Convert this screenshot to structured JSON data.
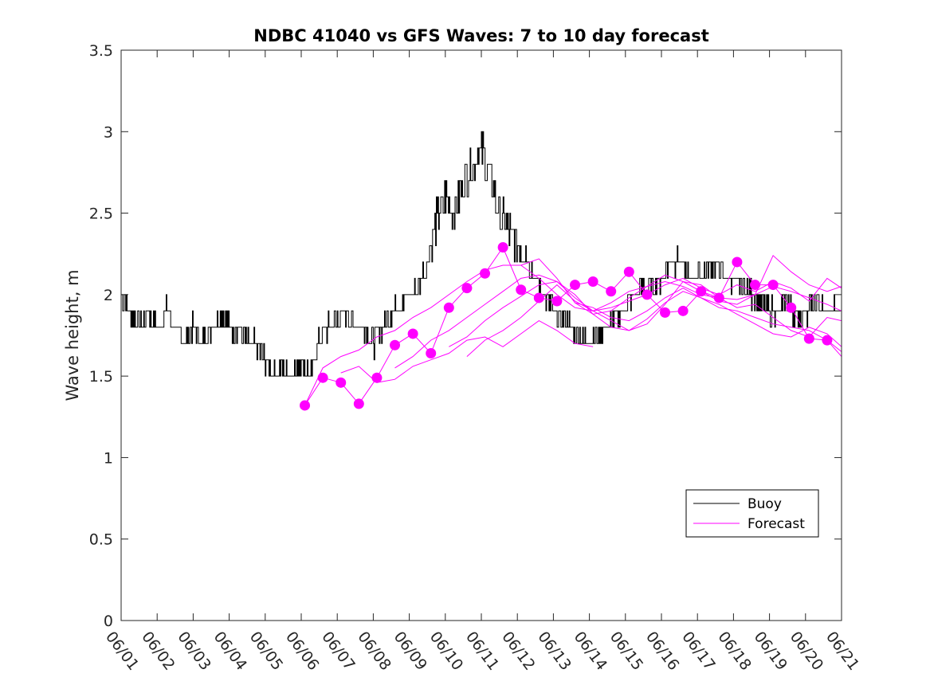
{
  "chart_data": {
    "type": "line",
    "title": "NDBC 41040 vs GFS Waves: 7 to 10 day forecast",
    "xlabel": "",
    "ylabel": "Wave height, m",
    "x_tick_labels": [
      "06/01",
      "06/02",
      "06/03",
      "06/04",
      "06/05",
      "06/06",
      "06/07",
      "06/08",
      "06/09",
      "06/10",
      "06/11",
      "06/12",
      "06/13",
      "06/14",
      "06/15",
      "06/16",
      "06/17",
      "06/18",
      "06/19",
      "06/20",
      "06/21"
    ],
    "y_ticks": [
      0,
      0.5,
      1,
      1.5,
      2,
      2.5,
      3,
      3.5
    ],
    "y_tick_labels": [
      "0",
      "0.5",
      "1",
      "1.5",
      "2",
      "2.5",
      "3",
      "3.5"
    ],
    "xlim_days": [
      0,
      20
    ],
    "ylim": [
      0,
      3.5
    ],
    "legend": {
      "position": "lower-right",
      "entries": [
        "Buoy",
        "Forecast"
      ]
    },
    "colors": {
      "buoy": "#000000",
      "forecast": "#ff00ff"
    },
    "series": [
      {
        "name": "Buoy",
        "x": [
          0,
          0.25,
          0.5,
          0.75,
          1,
          1.25,
          1.5,
          1.75,
          2,
          2.25,
          2.5,
          2.75,
          3,
          3.25,
          3.5,
          3.75,
          4,
          4.25,
          4.5,
          4.75,
          5,
          5.25,
          5.5,
          5.75,
          6,
          6.25,
          6.5,
          6.75,
          7,
          7.25,
          7.5,
          7.75,
          8,
          8.25,
          8.5,
          8.75,
          9,
          9.25,
          9.5,
          9.75,
          10,
          10.25,
          10.5,
          10.75,
          11,
          11.25,
          11.5,
          11.75,
          12,
          12.25,
          12.5,
          12.75,
          13,
          13.25,
          13.5,
          13.75,
          14,
          14.25,
          14.5,
          14.75,
          15,
          15.25,
          15.5,
          15.75,
          16,
          16.25,
          16.5,
          16.75,
          17,
          17.25,
          17.5,
          17.75,
          18,
          18.25,
          18.5,
          18.75,
          19,
          19.25,
          19.5,
          19.75,
          20
        ],
        "y": [
          2.0,
          1.9,
          1.8,
          1.9,
          1.8,
          1.9,
          1.8,
          1.7,
          1.8,
          1.7,
          1.8,
          1.9,
          1.8,
          1.8,
          1.7,
          1.7,
          1.6,
          1.5,
          1.55,
          1.5,
          1.6,
          1.5,
          1.75,
          1.8,
          1.85,
          1.9,
          1.8,
          1.8,
          1.7,
          1.8,
          1.9,
          1.95,
          2.0,
          2.05,
          2.2,
          2.45,
          2.6,
          2.5,
          2.7,
          2.8,
          2.9,
          2.7,
          2.5,
          2.4,
          2.3,
          2.25,
          2.1,
          2.0,
          1.9,
          1.85,
          1.8,
          1.75,
          1.7,
          1.75,
          1.8,
          1.85,
          1.9,
          2.0,
          2.05,
          2.05,
          2.1,
          2.2,
          2.2,
          2.1,
          2.1,
          2.15,
          2.2,
          2.1,
          2.1,
          2.05,
          2.0,
          1.95,
          1.9,
          1.9,
          1.95,
          1.85,
          1.9,
          1.95,
          1.9,
          1.9,
          1.9
        ]
      },
      {
        "name": "Forecast",
        "x": [
          5.1,
          5.6,
          6.1,
          6.6,
          7.1,
          7.6,
          8.1,
          8.6,
          9.1,
          9.6,
          10.1,
          10.6,
          11.1,
          11.6,
          12.1,
          12.6,
          13.1,
          13.6,
          14.1,
          14.6,
          15.1,
          15.6,
          16.1,
          16.6,
          17.1,
          17.6,
          18.1,
          18.6,
          19.1,
          19.6,
          20.0
        ],
        "y": [
          1.32,
          1.49,
          1.46,
          1.33,
          1.49,
          1.69,
          1.76,
          1.64,
          1.92,
          2.04,
          2.13,
          2.29,
          2.03,
          1.98,
          1.96,
          2.06,
          2.08,
          2.02,
          2.14,
          2.0,
          1.89,
          1.9,
          2.02,
          1.98,
          2.2,
          2.06,
          2.06,
          1.92,
          1.73,
          1.72,
          1.65
        ]
      },
      {
        "name": "",
        "x": [
          5.1,
          5.6,
          6.1,
          6.6,
          7.1,
          7.6,
          8.1,
          8.6,
          9.1,
          9.6,
          10.1,
          10.6,
          11.1,
          11.6,
          12.1,
          12.6,
          13.1,
          13.6,
          14.1,
          14.6,
          15.1,
          15.6,
          16.1,
          16.6,
          17.1,
          17.6,
          18.1,
          18.6,
          19.1,
          19.6,
          20.0
        ],
        "y": [
          1.32,
          1.55,
          1.62,
          1.66,
          1.74,
          1.78,
          1.86,
          1.92,
          2.0,
          2.08,
          2.15,
          2.18,
          2.18,
          2.1,
          2.0,
          1.92,
          1.9,
          1.95,
          2.02,
          2.05,
          2.08,
          2.05,
          2.0,
          1.98,
          1.97,
          2.0,
          2.05,
          2.02,
          1.98,
          1.94,
          1.9
        ]
      },
      {
        "name": "",
        "x": [
          7.6,
          8.1,
          8.6,
          9.1,
          9.6,
          10.1,
          10.6,
          11.1,
          11.6,
          12.1,
          12.6,
          13.1,
          13.6,
          14.1,
          14.6,
          15.1,
          15.6,
          16.1,
          16.6,
          17.1,
          17.6,
          18.1,
          18.6,
          19.1,
          19.6,
          20.0
        ],
        "y": [
          1.55,
          1.62,
          1.72,
          1.78,
          1.86,
          1.94,
          2.02,
          2.1,
          2.12,
          2.08,
          2.0,
          1.88,
          1.8,
          1.78,
          1.85,
          1.95,
          2.02,
          1.98,
          1.92,
          1.9,
          1.86,
          1.82,
          1.8,
          1.78,
          1.72,
          1.62
        ]
      },
      {
        "name": "",
        "x": [
          9.1,
          9.6,
          10.1,
          10.6,
          11.1,
          11.6,
          12.1,
          12.6,
          13.1,
          13.6,
          14.1,
          14.6,
          15.1,
          15.6,
          16.1,
          16.6,
          17.1,
          17.6,
          18.1,
          18.6,
          19.1,
          19.6,
          20.0
        ],
        "y": [
          1.68,
          1.74,
          1.84,
          1.92,
          1.99,
          2.06,
          2.08,
          1.98,
          1.9,
          1.84,
          1.78,
          1.82,
          1.94,
          2.08,
          2.06,
          1.98,
          1.92,
          1.94,
          1.86,
          1.78,
          1.74,
          1.86,
          1.84
        ]
      },
      {
        "name": "",
        "x": [
          11.1,
          11.6,
          12.1,
          12.6,
          13.1,
          13.6,
          14.1,
          14.6,
          15.1,
          15.6,
          16.1,
          16.6,
          17.1,
          17.6,
          18.1,
          18.6,
          19.1,
          19.6,
          20.0
        ],
        "y": [
          2.18,
          2.22,
          2.1,
          1.95,
          1.88,
          1.9,
          1.98,
          2.05,
          2.12,
          2.08,
          2.02,
          1.96,
          1.94,
          2.0,
          2.24,
          2.14,
          2.06,
          2.02,
          2.05
        ]
      },
      {
        "name": "",
        "x": [
          9.6,
          10.1,
          10.6,
          11.1,
          11.6,
          12.1,
          12.6,
          13.1,
          13.6,
          14.1,
          14.6,
          15.1,
          15.6,
          16.1,
          16.6,
          17.1,
          17.6,
          18.1,
          18.6,
          19.1,
          19.6,
          20.0
        ],
        "y": [
          1.62,
          1.72,
          1.78,
          1.86,
          1.96,
          2.06,
          1.96,
          1.9,
          1.92,
          1.96,
          2.0,
          2.06,
          2.1,
          2.04,
          2.0,
          2.06,
          2.02,
          2.08,
          2.04,
          1.96,
          2.1,
          2.04
        ]
      },
      {
        "name": "",
        "x": [
          6.1,
          6.6,
          7.1,
          7.6,
          8.1,
          8.6,
          9.1,
          9.6,
          10.1,
          10.6,
          11.1,
          11.6,
          12.1,
          12.6,
          13.1
        ],
        "y": [
          1.52,
          1.56,
          1.46,
          1.48,
          1.56,
          1.6,
          1.64,
          1.72,
          1.74,
          1.68,
          1.76,
          1.84,
          1.78,
          1.7,
          1.68
        ]
      },
      {
        "name": "",
        "x": [
          12.6,
          13.1,
          13.6,
          14.1,
          14.6,
          15.1,
          15.6,
          16.1,
          16.6,
          17.1,
          17.6,
          18.1,
          18.6,
          19.1,
          19.6,
          20.0
        ],
        "y": [
          1.95,
          1.92,
          1.86,
          1.84,
          1.9,
          1.98,
          2.04,
          1.98,
          1.94,
          1.88,
          1.82,
          1.76,
          1.74,
          1.8,
          1.76,
          1.68
        ]
      }
    ],
    "forecast_markers": {
      "x": [
        5.1,
        5.6,
        6.1,
        6.6,
        7.1,
        7.6,
        8.1,
        8.6,
        9.1,
        9.6,
        10.1,
        10.6,
        11.1,
        11.6,
        12.1,
        12.6,
        13.1,
        13.6,
        14.1,
        14.6,
        15.1,
        15.6,
        16.1,
        16.6,
        17.1,
        17.6,
        18.1,
        18.6,
        19.1,
        19.6
      ],
      "y": [
        1.32,
        1.49,
        1.46,
        1.33,
        1.49,
        1.69,
        1.76,
        1.64,
        1.92,
        2.04,
        2.13,
        2.29,
        2.03,
        1.98,
        1.96,
        2.06,
        2.08,
        2.02,
        2.14,
        2.0,
        1.89,
        1.9,
        2.02,
        1.98,
        2.2,
        2.06,
        2.06,
        1.92,
        1.73,
        1.72
      ]
    }
  }
}
